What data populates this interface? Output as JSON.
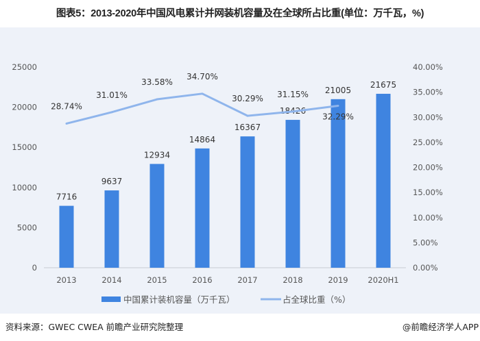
{
  "title": "图表5：2013-2020年中国风电累计并网装机容量及在全球所占比重(单位：万千瓦，%)",
  "footer": {
    "source": "资料来源：GWEC CWEA 前瞻产业研究院整理",
    "credit": "@前瞻经济学人APP"
  },
  "chart_data": {
    "type": "bar+line",
    "categories": [
      "2013",
      "2014",
      "2015",
      "2016",
      "2017",
      "2018",
      "2019",
      "2020H1"
    ],
    "series": [
      {
        "name": "中国累计装机容量（万千瓦）",
        "type": "bar",
        "axis": "left",
        "color": "#3f84e0",
        "values": [
          7716,
          9637,
          12934,
          14864,
          16367,
          18426,
          21005,
          21675
        ],
        "labels": [
          "7716",
          "9637",
          "12934",
          "14864",
          "16367",
          "18426",
          "21005",
          "21675"
        ]
      },
      {
        "name": "占全球比重（%）",
        "type": "line",
        "axis": "right",
        "color": "#8fb5ec",
        "values": [
          28.74,
          31.01,
          33.58,
          34.7,
          30.29,
          31.15,
          32.29,
          null
        ],
        "labels": [
          "28.74%",
          "31.01%",
          "33.58%",
          "34.70%",
          "30.29%",
          "31.15%",
          "32.29%",
          ""
        ]
      }
    ],
    "y_left": {
      "range": [
        0,
        25000
      ],
      "ticks": [
        "0",
        "5000",
        "10000",
        "15000",
        "20000",
        "25000"
      ]
    },
    "y_right": {
      "range": [
        0,
        40
      ],
      "ticks": [
        "0.00%",
        "5.00%",
        "10.00%",
        "15.00%",
        "20.00%",
        "25.00%",
        "30.00%",
        "35.00%",
        "40.00%"
      ]
    },
    "grid": false,
    "legend": "bottom"
  }
}
